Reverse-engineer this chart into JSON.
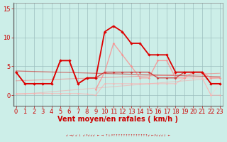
{
  "bg_color": "#cceee8",
  "grid_color": "#99bbbb",
  "ylim": [
    -1.8,
    16
  ],
  "xlim": [
    -0.3,
    23.3
  ],
  "yticks": [
    0,
    5,
    10,
    15
  ],
  "xticks": [
    0,
    1,
    2,
    3,
    4,
    5,
    6,
    7,
    8,
    9,
    10,
    11,
    12,
    13,
    14,
    15,
    16,
    17,
    18,
    19,
    20,
    21,
    22,
    23
  ],
  "xlabel": "Vent moyen/en rafales ( km/h )",
  "series": [
    {
      "x": [
        0,
        1,
        2,
        3,
        4,
        5,
        6,
        7,
        8,
        9,
        10,
        11,
        12,
        13,
        14,
        15,
        16,
        17,
        18,
        19,
        20,
        21,
        22,
        23
      ],
      "y": [
        4,
        2,
        2,
        2,
        2,
        6,
        6,
        2,
        3,
        3,
        11,
        12,
        11,
        9,
        9,
        7,
        7,
        7,
        4,
        4,
        4,
        4,
        2,
        2
      ],
      "color": "#dd0000",
      "lw": 1.3,
      "ms": 2.2,
      "alpha": 1.0,
      "zorder": 6
    },
    {
      "x": [
        0,
        1,
        2,
        3,
        4,
        5,
        6,
        7,
        8,
        9,
        10,
        11,
        12,
        13,
        14,
        15,
        16,
        17,
        18,
        19,
        20,
        21,
        22,
        23
      ],
      "y": [
        4,
        2,
        2,
        2,
        2,
        6,
        6,
        2,
        3,
        3,
        4,
        4,
        4,
        4,
        4,
        4,
        3,
        3,
        3,
        4,
        4,
        4,
        2,
        2
      ],
      "color": "#cc3333",
      "lw": 1.0,
      "ms": 1.8,
      "alpha": 0.85,
      "zorder": 5
    },
    {
      "x": [
        9,
        10,
        11,
        12,
        13,
        14,
        15,
        16,
        17,
        18,
        19,
        20,
        21,
        22,
        23
      ],
      "y": [
        1,
        4,
        9,
        7,
        5,
        3,
        3,
        6,
        6,
        3,
        3,
        4,
        4,
        3,
        3
      ],
      "color": "#ff8888",
      "lw": 1.0,
      "ms": 1.8,
      "alpha": 0.75,
      "zorder": 4
    },
    {
      "x": [
        0,
        1,
        2,
        3,
        4,
        5,
        6,
        7,
        8,
        9,
        10,
        11,
        12,
        13,
        14,
        15,
        16,
        17,
        18,
        19,
        20,
        21,
        22,
        23
      ],
      "y": [
        0.3,
        0.3,
        0.3,
        0.3,
        0.3,
        0.3,
        0.3,
        0.3,
        0.2,
        0,
        2,
        2,
        2,
        2,
        2,
        2,
        2,
        2,
        2,
        3,
        3,
        3,
        0,
        0
      ],
      "color": "#ffaaaa",
      "lw": 0.8,
      "ms": 1.5,
      "alpha": 0.65,
      "zorder": 3
    },
    {
      "x": [
        18,
        19,
        20,
        21,
        22,
        23
      ],
      "y": [
        3,
        3,
        3,
        3,
        0,
        2
      ],
      "color": "#ffcccc",
      "lw": 0.8,
      "ms": 1.5,
      "alpha": 0.6,
      "zorder": 2
    }
  ],
  "trend_lines": [
    {
      "x": [
        0,
        23
      ],
      "y": [
        4.2,
        3.2
      ],
      "color": "#cc0000",
      "lw": 0.9,
      "alpha": 0.5,
      "zorder": 2
    },
    {
      "x": [
        0,
        23
      ],
      "y": [
        2.5,
        3.8
      ],
      "color": "#ff5555",
      "lw": 0.8,
      "alpha": 0.45,
      "zorder": 2
    },
    {
      "x": [
        0,
        23
      ],
      "y": [
        0.1,
        3.0
      ],
      "color": "#ff9999",
      "lw": 0.8,
      "alpha": 0.45,
      "zorder": 2
    }
  ],
  "tick_color": "#cc0000",
  "label_color": "#cc0000",
  "xlabel_fontsize": 7,
  "tick_fontsize": 6
}
